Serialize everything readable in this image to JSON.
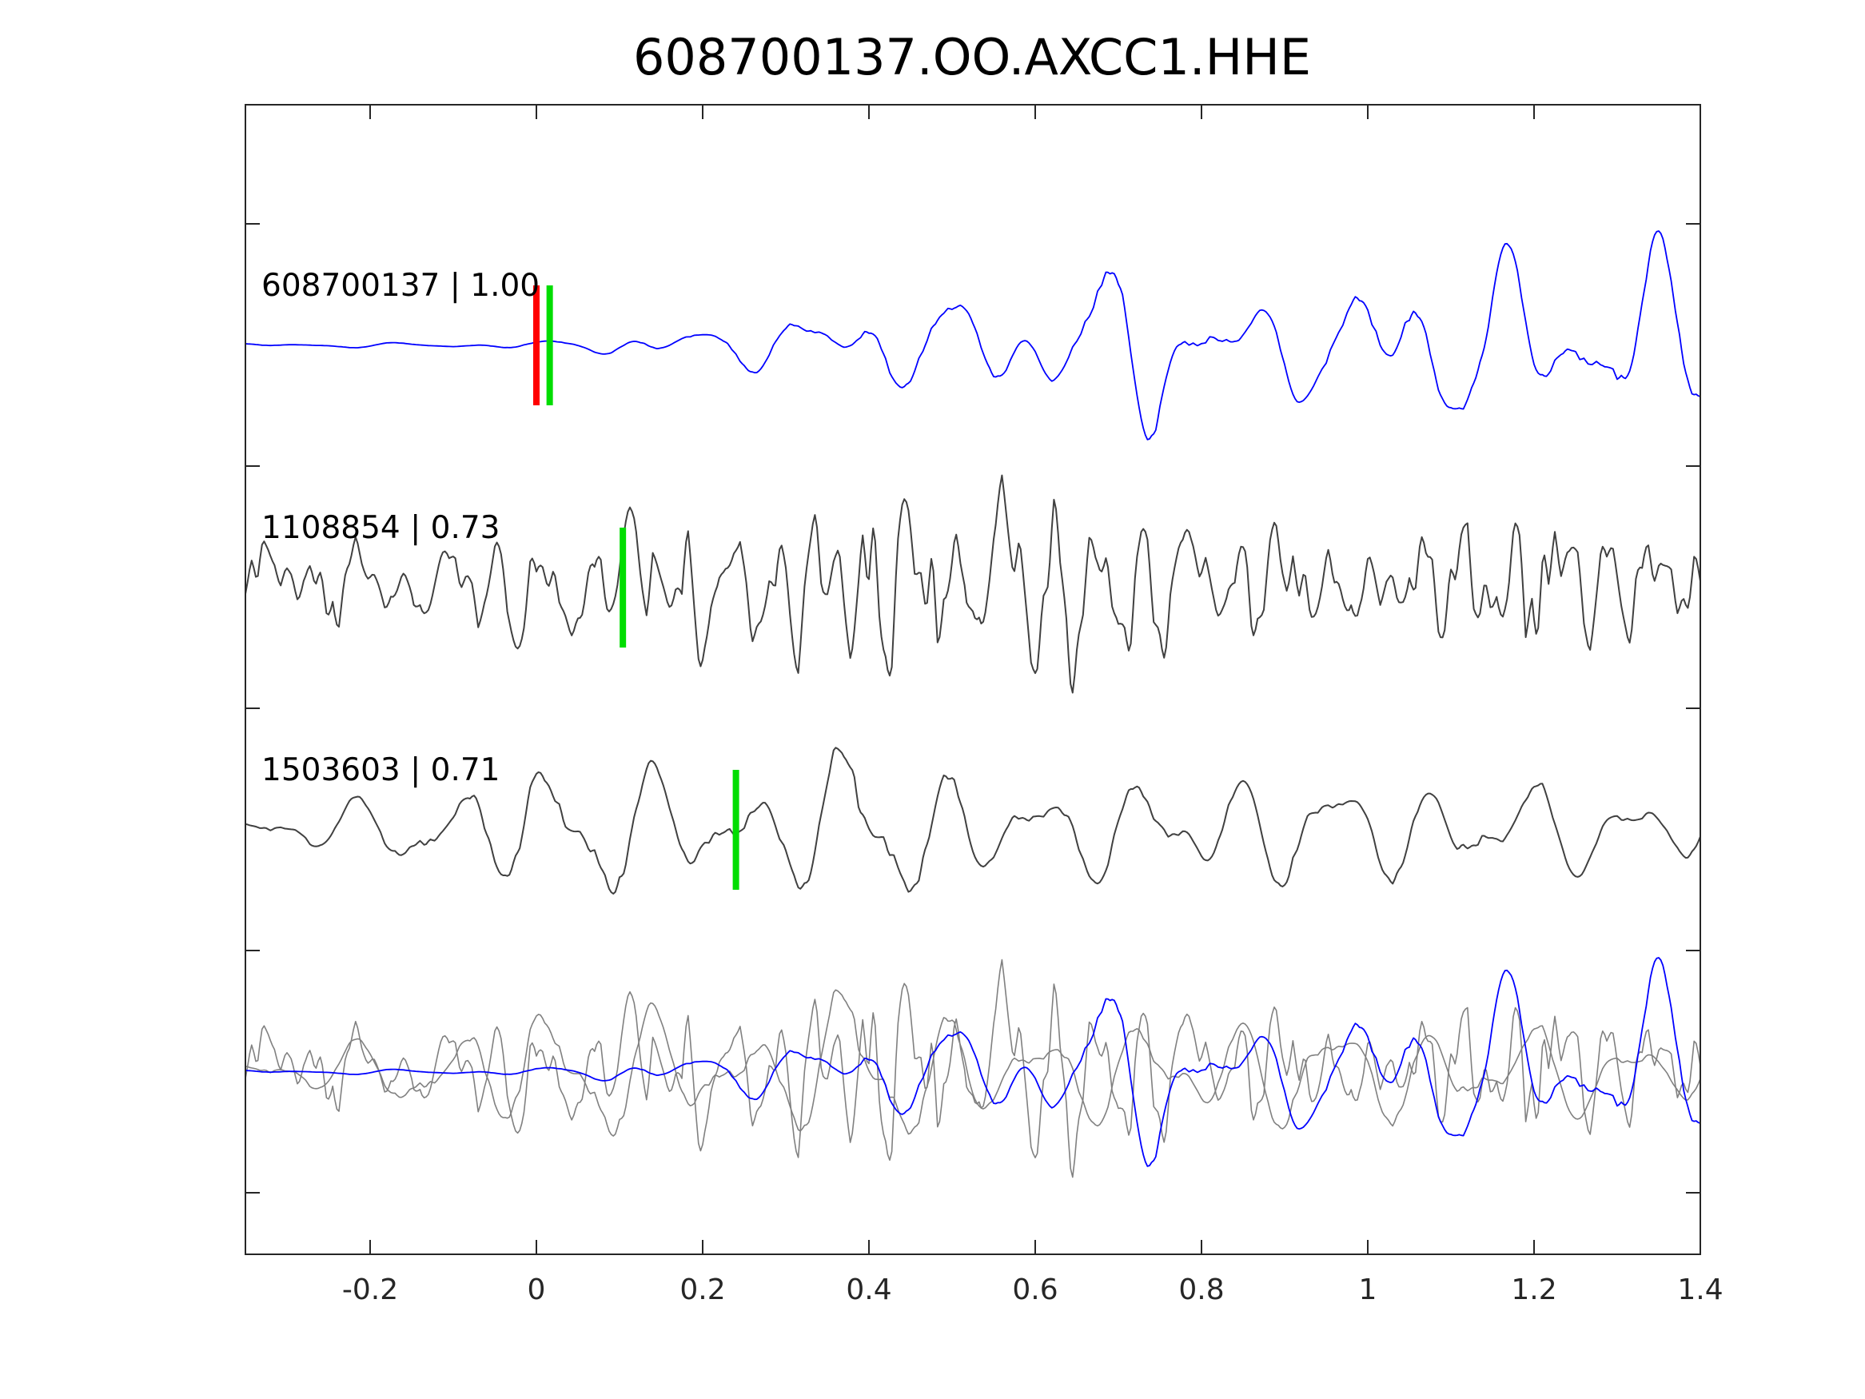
{
  "chart_data": {
    "type": "line",
    "title": "608700137.OO.AXCC1.HHE",
    "xlabel": "",
    "ylabel": "",
    "xlim": [
      -0.35,
      1.4
    ],
    "xticks": [
      -0.2,
      0,
      0.2,
      0.4,
      0.6,
      0.8,
      1,
      1.2,
      1.4
    ],
    "xtick_labels": [
      "-0.2",
      "0",
      "0.2",
      "0.4",
      "0.6",
      "0.8",
      "1",
      "1.2",
      "1.4"
    ],
    "grid": false,
    "legend": "none",
    "colors": {
      "reference": "#0000ff",
      "other": "#404040",
      "overlay_other": "#808080",
      "pick_red": "#ff0000",
      "pick_green": "#00dd00"
    },
    "traces": [
      {
        "label": "608700137 | 1.00",
        "color": "#0000ff",
        "picks": [
          {
            "t": 0.0,
            "color": "#ff0000"
          },
          {
            "t": 0.016,
            "color": "#00dd00"
          }
        ],
        "envelope": [
          [
            -0.35,
            0.02
          ],
          [
            -0.05,
            0.03
          ],
          [
            0.0,
            0.04
          ],
          [
            0.05,
            0.06
          ],
          [
            0.15,
            0.16
          ],
          [
            0.25,
            0.2
          ],
          [
            0.3,
            0.35
          ],
          [
            0.35,
            0.45
          ],
          [
            0.45,
            0.4
          ],
          [
            0.55,
            0.55
          ],
          [
            0.65,
            0.6
          ],
          [
            0.7,
            0.8
          ],
          [
            0.75,
            1.0
          ],
          [
            0.85,
            0.35
          ],
          [
            0.95,
            0.65
          ],
          [
            1.05,
            0.7
          ],
          [
            1.15,
            1.0
          ],
          [
            1.25,
            0.55
          ],
          [
            1.35,
            1.0
          ],
          [
            1.4,
            0.8
          ]
        ],
        "components": [
          {
            "f": 6.0,
            "p": 1.2,
            "w": 0.45
          },
          {
            "f": 10.5,
            "p": 0.3,
            "w": 0.4
          },
          {
            "f": 17.0,
            "p": 2.0,
            "w": 0.15
          }
        ],
        "noise": 0.04,
        "noise_dt": 0.005
      },
      {
        "label": "1108854 | 0.73",
        "color": "#404040",
        "picks": [
          {
            "t": 0.104,
            "color": "#00dd00"
          }
        ],
        "envelope": [
          [
            -0.35,
            0.4
          ],
          [
            0.0,
            0.55
          ],
          [
            0.3,
            0.8
          ],
          [
            0.6,
            1.0
          ],
          [
            0.8,
            0.6
          ],
          [
            1.0,
            0.55
          ],
          [
            1.2,
            0.7
          ],
          [
            1.4,
            0.5
          ]
        ],
        "components": [
          {
            "f": 18.0,
            "p": 0.7,
            "w": 0.35
          },
          {
            "f": 27.0,
            "p": 2.3,
            "w": 0.25
          },
          {
            "f": 9.0,
            "p": 1.1,
            "w": 0.15
          }
        ],
        "noise": 0.5,
        "noise_dt": 0.007
      },
      {
        "label": "1503603 | 0.71",
        "color": "#404040",
        "picks": [
          {
            "t": 0.24,
            "color": "#00dd00"
          }
        ],
        "envelope": [
          [
            -0.35,
            0.12
          ],
          [
            -0.05,
            0.5
          ],
          [
            0.0,
            0.8
          ],
          [
            0.15,
            0.6
          ],
          [
            0.3,
            0.45
          ],
          [
            0.38,
            1.0
          ],
          [
            0.42,
            0.8
          ],
          [
            0.6,
            0.35
          ],
          [
            0.8,
            0.6
          ],
          [
            1.0,
            0.5
          ],
          [
            1.2,
            0.45
          ],
          [
            1.4,
            0.35
          ]
        ],
        "components": [
          {
            "f": 8.5,
            "p": 0.4,
            "w": 0.55
          },
          {
            "f": 14.0,
            "p": 1.9,
            "w": 0.3
          },
          {
            "f": 5.0,
            "p": 2.5,
            "w": 0.15
          }
        ],
        "noise": 0.08,
        "noise_dt": 0.006
      }
    ],
    "overlay": {
      "description_rows": 1,
      "draw_order": [
        "1108854 | 0.73",
        "1503603 | 0.71",
        "608700137 | 1.00"
      ]
    }
  }
}
